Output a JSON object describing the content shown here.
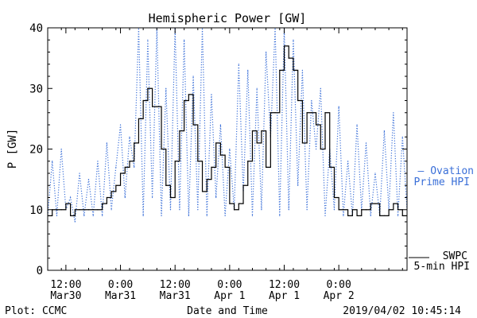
{
  "chart_data": {
    "type": "line",
    "title": "Hemispheric Power [GW]",
    "ylabel": "P [GW]",
    "xlabel": "Date and Time",
    "ylim": [
      0,
      40
    ],
    "yticks": [
      0,
      10,
      20,
      30,
      40
    ],
    "xlim": [
      "2019-03-30T08:00",
      "2019-04-02T15:00"
    ],
    "xticks": [
      {
        "t": "2019-03-30T12:00",
        "line1": "12:00",
        "line2": "Mar30"
      },
      {
        "t": "2019-03-31T00:00",
        "line1": "0:00",
        "line2": "Mar31"
      },
      {
        "t": "2019-03-31T12:00",
        "line1": "12:00",
        "line2": "Mar31"
      },
      {
        "t": "2019-04-01T00:00",
        "line1": "0:00",
        "line2": "Apr 1"
      },
      {
        "t": "2019-04-01T12:00",
        "line1": "12:00",
        "line2": "Apr 1"
      },
      {
        "t": "2019-04-02T00:00",
        "line1": "0:00",
        "line2": "Apr 2"
      }
    ],
    "grid": false,
    "series": [
      {
        "name": "Ovation Prime HPI",
        "legend_line1": "— Ovation",
        "legend_line2": "Prime HPI",
        "color": "#3a6fd8",
        "style": "dotted",
        "x": [
          "2019-03-30T08:00",
          "2019-03-30T09:00",
          "2019-03-30T10:00",
          "2019-03-30T11:00",
          "2019-03-30T12:00",
          "2019-03-30T13:00",
          "2019-03-30T14:00",
          "2019-03-30T15:00",
          "2019-03-30T16:00",
          "2019-03-30T17:00",
          "2019-03-30T18:00",
          "2019-03-30T19:00",
          "2019-03-30T20:00",
          "2019-03-30T21:00",
          "2019-03-30T22:00",
          "2019-03-30T23:00",
          "2019-03-31T00:00",
          "2019-03-31T01:00",
          "2019-03-31T02:00",
          "2019-03-31T03:00",
          "2019-03-31T04:00",
          "2019-03-31T05:00",
          "2019-03-31T06:00",
          "2019-03-31T07:00",
          "2019-03-31T08:00",
          "2019-03-31T09:00",
          "2019-03-31T10:00",
          "2019-03-31T11:00",
          "2019-03-31T12:00",
          "2019-03-31T13:00",
          "2019-03-31T14:00",
          "2019-03-31T15:00",
          "2019-03-31T16:00",
          "2019-03-31T17:00",
          "2019-03-31T18:00",
          "2019-03-31T19:00",
          "2019-03-31T20:00",
          "2019-03-31T21:00",
          "2019-03-31T22:00",
          "2019-03-31T23:00",
          "2019-04-01T00:00",
          "2019-04-01T01:00",
          "2019-04-01T02:00",
          "2019-04-01T03:00",
          "2019-04-01T04:00",
          "2019-04-01T05:00",
          "2019-04-01T06:00",
          "2019-04-01T07:00",
          "2019-04-01T08:00",
          "2019-04-01T09:00",
          "2019-04-01T10:00",
          "2019-04-01T11:00",
          "2019-04-01T12:00",
          "2019-04-01T13:00",
          "2019-04-01T14:00",
          "2019-04-01T15:00",
          "2019-04-01T16:00",
          "2019-04-01T17:00",
          "2019-04-01T18:00",
          "2019-04-01T19:00",
          "2019-04-01T20:00",
          "2019-04-01T21:00",
          "2019-04-01T22:00",
          "2019-04-01T23:00",
          "2019-04-02T00:00",
          "2019-04-02T01:00",
          "2019-04-02T02:00",
          "2019-04-02T03:00",
          "2019-04-02T04:00",
          "2019-04-02T05:00",
          "2019-04-02T06:00",
          "2019-04-02T07:00",
          "2019-04-02T08:00",
          "2019-04-02T09:00",
          "2019-04-02T10:00",
          "2019-04-02T11:00",
          "2019-04-02T12:00",
          "2019-04-02T13:00",
          "2019-04-02T14:00",
          "2019-04-02T15:00"
        ],
        "values": [
          9,
          18,
          9,
          20,
          10,
          12,
          8,
          16,
          9,
          15,
          9,
          18,
          9,
          21,
          10,
          17,
          24,
          12,
          22,
          17,
          40,
          9,
          38,
          12,
          40,
          9,
          30,
          10,
          40,
          10,
          38,
          9,
          32,
          10,
          40,
          9,
          29,
          12,
          24,
          9,
          20,
          10,
          34,
          13,
          33,
          9,
          30,
          10,
          36,
          22,
          40,
          9,
          40,
          10,
          38,
          14,
          33,
          10,
          28,
          20,
          30,
          9,
          20,
          10,
          27,
          9,
          18,
          9,
          24,
          10,
          21,
          9,
          16,
          9,
          23,
          10,
          26,
          9,
          22,
          10
        ]
      },
      {
        "name": "SWPC 5-min HPI",
        "legend_line1": "SWPC",
        "legend_line2": "5-min HPI",
        "color": "#000000",
        "style": "solid",
        "x": [
          "2019-03-30T08:00",
          "2019-03-30T09:00",
          "2019-03-30T10:00",
          "2019-03-30T11:00",
          "2019-03-30T12:00",
          "2019-03-30T13:00",
          "2019-03-30T14:00",
          "2019-03-30T15:00",
          "2019-03-30T16:00",
          "2019-03-30T17:00",
          "2019-03-30T18:00",
          "2019-03-30T19:00",
          "2019-03-30T20:00",
          "2019-03-30T21:00",
          "2019-03-30T22:00",
          "2019-03-30T23:00",
          "2019-03-31T00:00",
          "2019-03-31T01:00",
          "2019-03-31T02:00",
          "2019-03-31T03:00",
          "2019-03-31T04:00",
          "2019-03-31T05:00",
          "2019-03-31T06:00",
          "2019-03-31T07:00",
          "2019-03-31T08:00",
          "2019-03-31T09:00",
          "2019-03-31T10:00",
          "2019-03-31T11:00",
          "2019-03-31T12:00",
          "2019-03-31T13:00",
          "2019-03-31T14:00",
          "2019-03-31T15:00",
          "2019-03-31T16:00",
          "2019-03-31T17:00",
          "2019-03-31T18:00",
          "2019-03-31T19:00",
          "2019-03-31T20:00",
          "2019-03-31T21:00",
          "2019-03-31T22:00",
          "2019-03-31T23:00",
          "2019-04-01T00:00",
          "2019-04-01T01:00",
          "2019-04-01T02:00",
          "2019-04-01T03:00",
          "2019-04-01T04:00",
          "2019-04-01T05:00",
          "2019-04-01T06:00",
          "2019-04-01T07:00",
          "2019-04-01T08:00",
          "2019-04-01T09:00",
          "2019-04-01T10:00",
          "2019-04-01T11:00",
          "2019-04-01T12:00",
          "2019-04-01T13:00",
          "2019-04-01T14:00",
          "2019-04-01T15:00",
          "2019-04-01T16:00",
          "2019-04-01T17:00",
          "2019-04-01T18:00",
          "2019-04-01T19:00",
          "2019-04-01T20:00",
          "2019-04-01T21:00",
          "2019-04-01T22:00",
          "2019-04-01T23:00",
          "2019-04-02T00:00",
          "2019-04-02T01:00",
          "2019-04-02T02:00",
          "2019-04-02T03:00",
          "2019-04-02T04:00",
          "2019-04-02T05:00",
          "2019-04-02T06:00",
          "2019-04-02T07:00",
          "2019-04-02T08:00",
          "2019-04-02T09:00",
          "2019-04-02T10:00",
          "2019-04-02T11:00",
          "2019-04-02T12:00",
          "2019-04-02T13:00",
          "2019-04-02T14:00",
          "2019-04-02T15:00"
        ],
        "values": [
          9,
          10,
          10,
          10,
          11,
          9,
          10,
          10,
          10,
          10,
          10,
          10,
          11,
          12,
          13,
          14,
          16,
          17,
          18,
          21,
          25,
          28,
          30,
          27,
          27,
          20,
          14,
          12,
          18,
          23,
          28,
          29,
          24,
          18,
          13,
          15,
          17,
          21,
          19,
          17,
          11,
          10,
          11,
          14,
          18,
          23,
          21,
          23,
          17,
          26,
          26,
          33,
          37,
          35,
          33,
          28,
          21,
          26,
          26,
          24,
          20,
          26,
          17,
          12,
          10,
          10,
          9,
          10,
          9,
          10,
          10,
          11,
          11,
          9,
          9,
          10,
          11,
          10,
          9,
          9
        ]
      }
    ]
  },
  "footer": {
    "plot_label": "Plot: CCMC",
    "timestamp": "2019/04/02 10:45:14"
  }
}
